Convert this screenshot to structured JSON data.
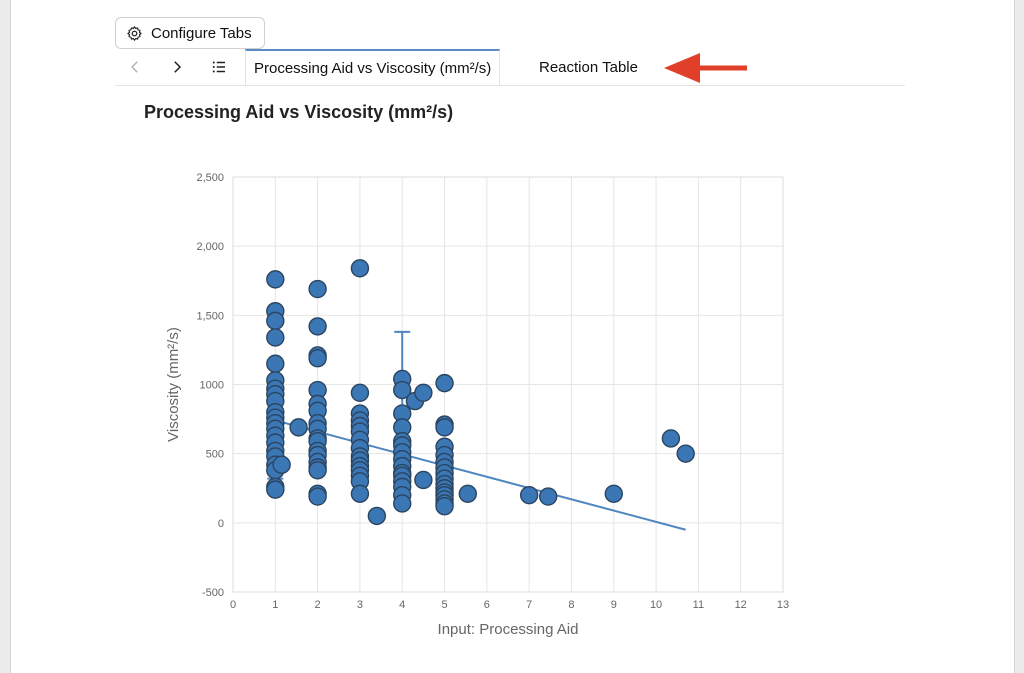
{
  "toolbar": {
    "configure_label": "Configure Tabs",
    "configure_icon": "gear-icon"
  },
  "tabs": [
    {
      "label": "Processing Aid vs Viscosity (mm²/s)",
      "active": true
    },
    {
      "label": "Reaction Table",
      "active": false
    }
  ],
  "nav": {
    "back_icon": "chevron-left-icon",
    "forward_icon": "chevron-right-icon",
    "list_icon": "list-icon"
  },
  "colors": {
    "accent": "#5b8ac7",
    "point_fill": "#3b76b5",
    "point_stroke": "#2b4560",
    "trend": "#4f86c0",
    "arrow": "#e0402a"
  },
  "chart_data": {
    "type": "scatter",
    "title": "Processing Aid vs Viscosity (mm²/s)",
    "xlabel": "Input: Processing Aid",
    "ylabel": "Viscosity (mm²/s)",
    "xlim": [
      0,
      13
    ],
    "ylim": [
      -500,
      2500
    ],
    "x_ticks": [
      0,
      1,
      2,
      3,
      4,
      5,
      6,
      7,
      8,
      9,
      10,
      11,
      12,
      13
    ],
    "y_ticks": [
      -500,
      0,
      500,
      1000,
      1500,
      2000,
      2500
    ],
    "y_tick_labels": [
      "-500",
      "0",
      "500",
      "1000",
      "1,500",
      "2,000",
      "2,500"
    ],
    "grid": true,
    "legend": "none",
    "series": [
      {
        "points": [
          [
            1,
            1760
          ],
          [
            1,
            1530
          ],
          [
            1,
            1460
          ],
          [
            1,
            1340
          ],
          [
            1,
            1150
          ],
          [
            1,
            1030
          ],
          [
            1,
            970
          ],
          [
            1,
            930
          ],
          [
            1,
            880
          ],
          [
            1,
            800
          ],
          [
            1,
            760
          ],
          [
            1,
            720
          ],
          [
            1,
            680
          ],
          [
            1,
            630
          ],
          [
            1,
            580
          ],
          [
            1,
            520
          ],
          [
            1,
            480
          ],
          [
            1,
            420
          ],
          [
            1,
            380
          ],
          [
            1,
            260
          ],
          [
            1,
            240
          ],
          [
            1.15,
            420
          ],
          [
            1.55,
            690
          ],
          [
            2,
            1690
          ],
          [
            2,
            1420
          ],
          [
            2,
            1210
          ],
          [
            2,
            1190
          ],
          [
            2,
            960
          ],
          [
            2,
            860
          ],
          [
            2,
            810
          ],
          [
            2,
            720
          ],
          [
            2,
            680
          ],
          [
            2,
            610
          ],
          [
            2,
            590
          ],
          [
            2,
            520
          ],
          [
            2,
            490
          ],
          [
            2,
            440
          ],
          [
            2,
            400
          ],
          [
            2,
            380
          ],
          [
            2,
            210
          ],
          [
            2,
            190
          ],
          [
            3,
            1840
          ],
          [
            3,
            940
          ],
          [
            3,
            790
          ],
          [
            3,
            740
          ],
          [
            3,
            700
          ],
          [
            3,
            660
          ],
          [
            3,
            600
          ],
          [
            3,
            540
          ],
          [
            3,
            480
          ],
          [
            3,
            450
          ],
          [
            3,
            410
          ],
          [
            3,
            380
          ],
          [
            3,
            340
          ],
          [
            3,
            300
          ],
          [
            3,
            210
          ],
          [
            3.4,
            50
          ],
          [
            4,
            1040
          ],
          [
            4,
            960
          ],
          [
            4,
            790
          ],
          [
            4,
            690
          ],
          [
            4,
            590
          ],
          [
            4,
            560
          ],
          [
            4,
            510
          ],
          [
            4,
            460
          ],
          [
            4,
            410
          ],
          [
            4,
            360
          ],
          [
            4,
            340
          ],
          [
            4,
            300
          ],
          [
            4,
            260
          ],
          [
            4,
            200
          ],
          [
            4,
            140
          ],
          [
            4.3,
            880
          ],
          [
            4.5,
            940
          ],
          [
            4.5,
            310
          ],
          [
            5,
            1010
          ],
          [
            5,
            710
          ],
          [
            5,
            690
          ],
          [
            5,
            550
          ],
          [
            5,
            490
          ],
          [
            5,
            440
          ],
          [
            5,
            400
          ],
          [
            5,
            360
          ],
          [
            5,
            320
          ],
          [
            5,
            280
          ],
          [
            5,
            250
          ],
          [
            5,
            220
          ],
          [
            5,
            200
          ],
          [
            5,
            170
          ],
          [
            5,
            140
          ],
          [
            5,
            120
          ],
          [
            5.55,
            210
          ],
          [
            7,
            200
          ],
          [
            7.45,
            190
          ],
          [
            9,
            210
          ],
          [
            10.35,
            610
          ],
          [
            10.7,
            500
          ]
        ]
      }
    ],
    "trendline": {
      "x": [
        1,
        10.7
      ],
      "y": [
        740,
        -50
      ]
    },
    "error_bars": [
      {
        "x": 1,
        "low": 320,
        "high": 530
      },
      {
        "x": 4,
        "low": 600,
        "high": 1380
      }
    ]
  }
}
